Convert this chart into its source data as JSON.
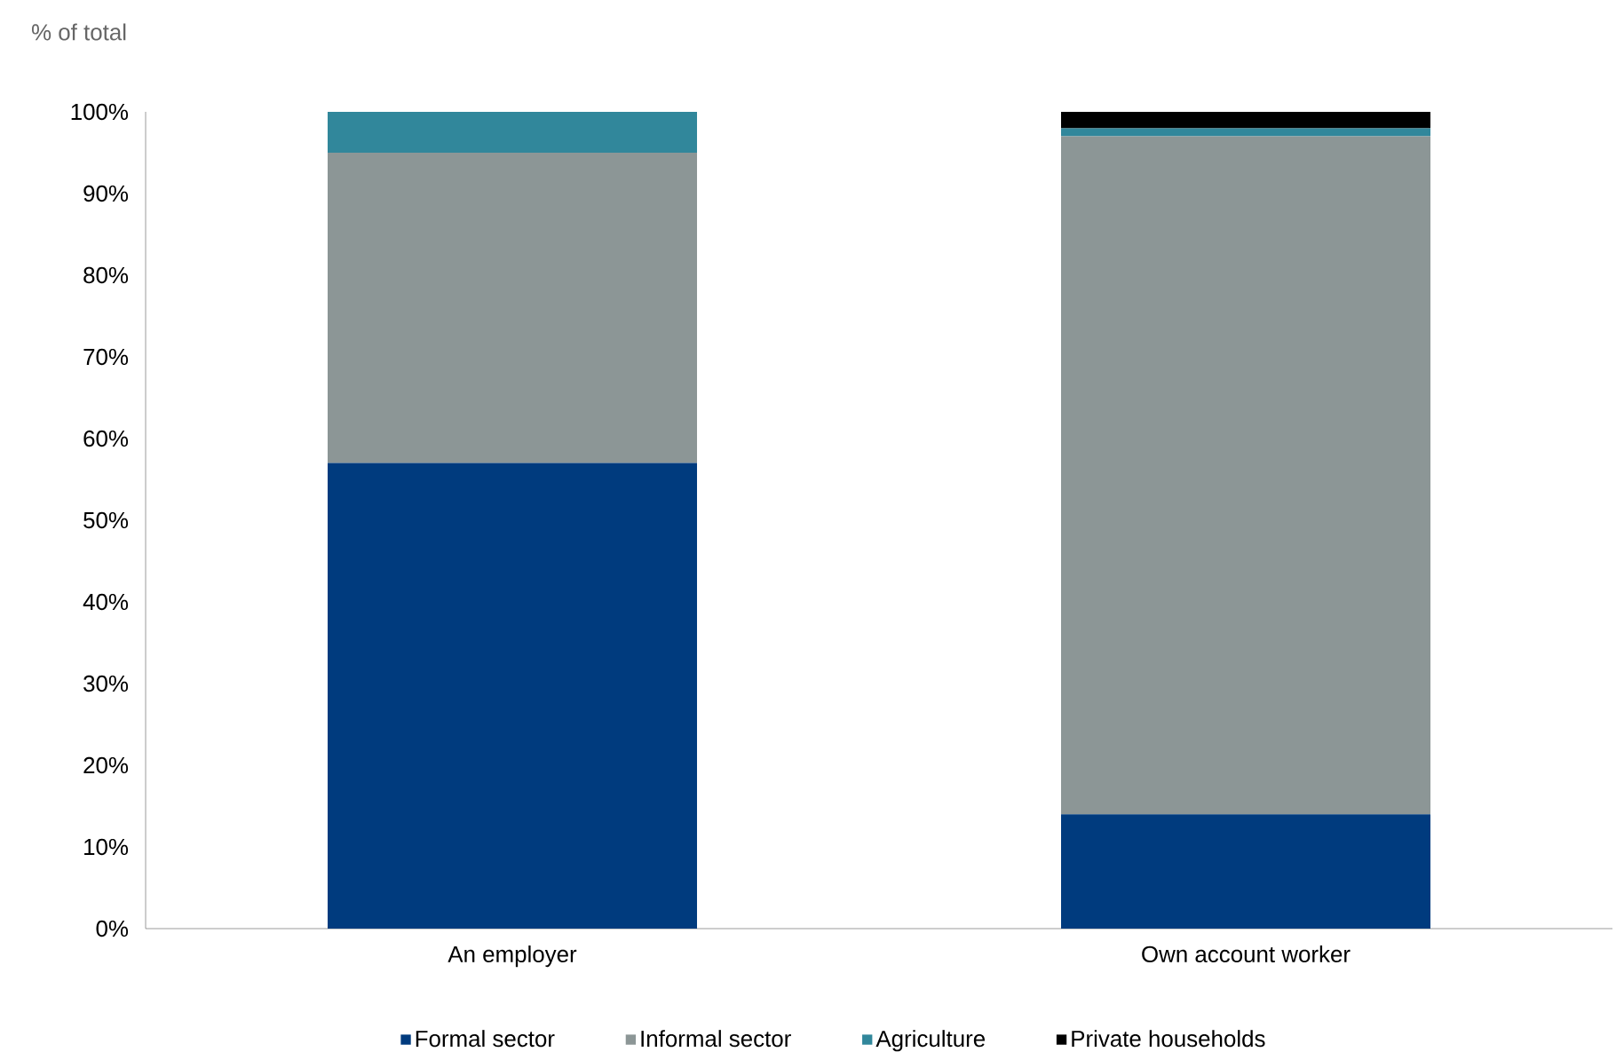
{
  "chart_data": {
    "type": "bar",
    "stacked": true,
    "ylabel": "% of total",
    "categories": [
      "An employer",
      "Own account worker"
    ],
    "series": [
      {
        "name": "Formal sector",
        "color": "#003b7e",
        "values": [
          57,
          14
        ]
      },
      {
        "name": "Informal sector",
        "color": "#8c9696",
        "values": [
          38,
          83
        ]
      },
      {
        "name": "Agriculture",
        "color": "#31879b",
        "values": [
          5,
          1
        ]
      },
      {
        "name": "Private households",
        "color": "#000000",
        "values": [
          0,
          2
        ]
      }
    ],
    "ylim": [
      0,
      100
    ],
    "yticks": [
      {
        "value": 0,
        "label": "0%"
      },
      {
        "value": 10,
        "label": "10%"
      },
      {
        "value": 20,
        "label": "20%"
      },
      {
        "value": 30,
        "label": "30%"
      },
      {
        "value": 40,
        "label": "40%"
      },
      {
        "value": 50,
        "label": "50%"
      },
      {
        "value": 60,
        "label": "60%"
      },
      {
        "value": 70,
        "label": "70%"
      },
      {
        "value": 80,
        "label": "80%"
      },
      {
        "value": 90,
        "label": "90%"
      },
      {
        "value": 100,
        "label": "100%"
      }
    ],
    "grid": false,
    "legend": "bottom"
  }
}
